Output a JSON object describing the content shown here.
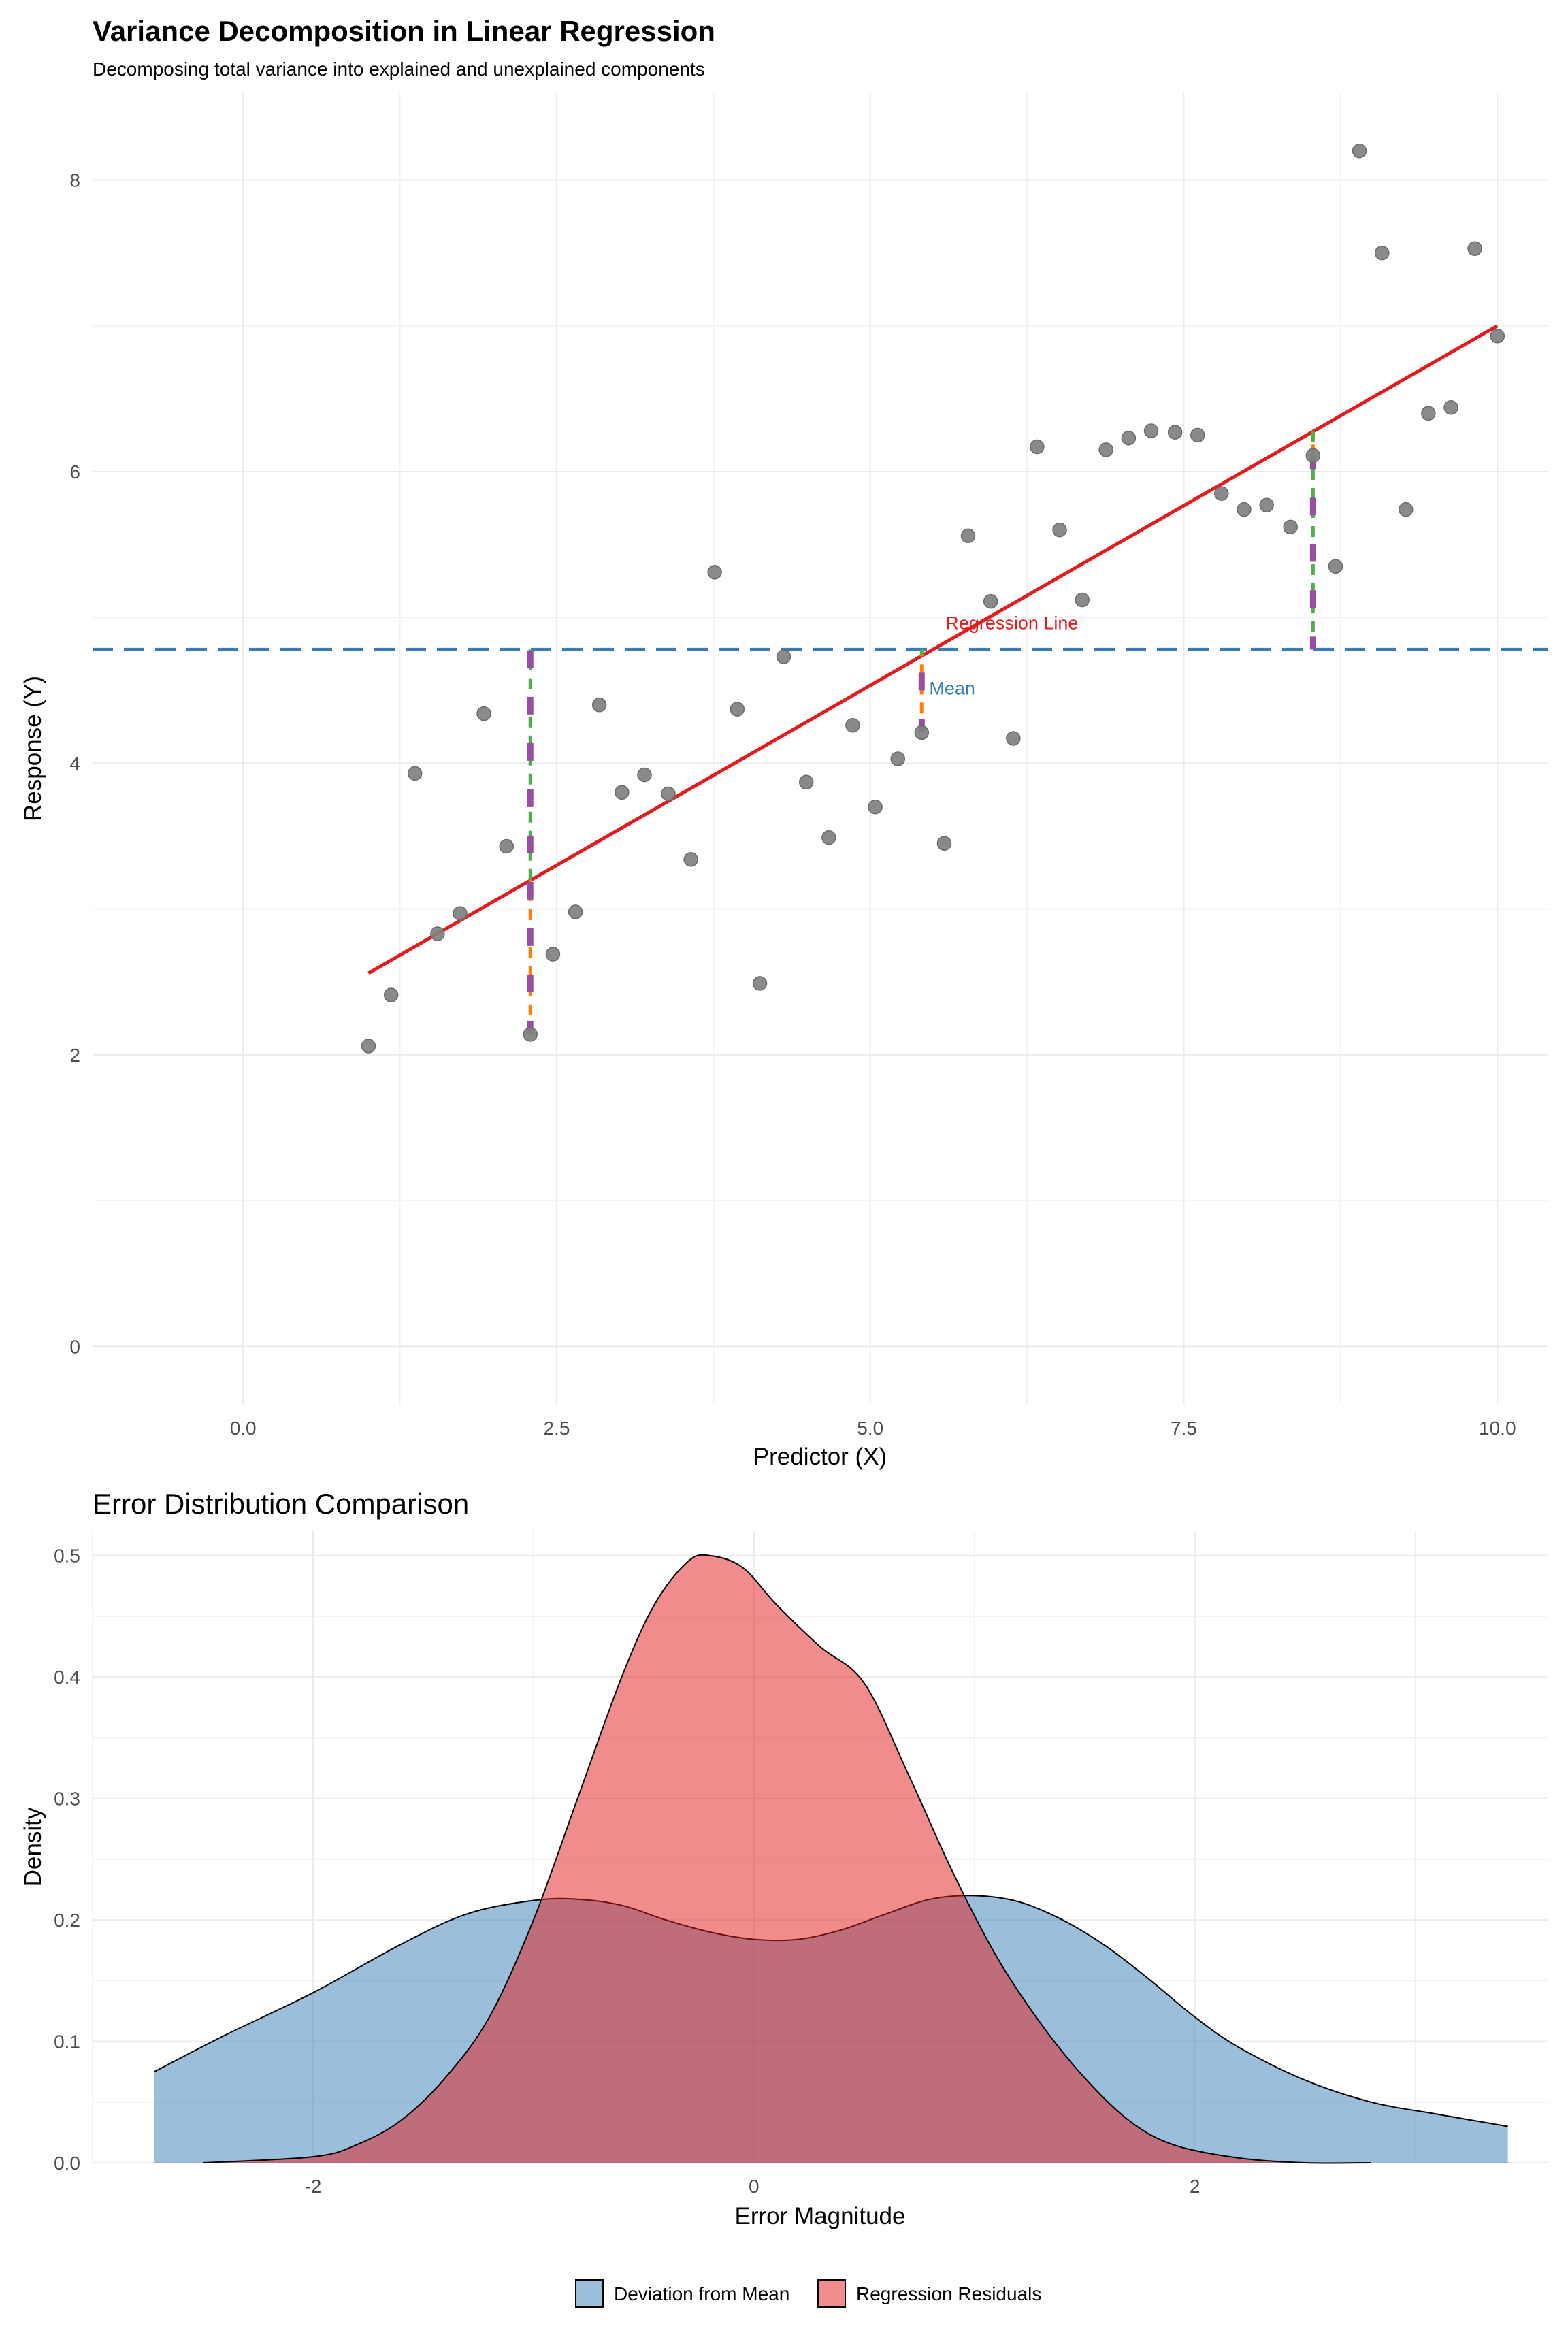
{
  "chart_data": [
    {
      "type": "scatter",
      "title": "Variance Decomposition in Linear Regression",
      "subtitle": "Decomposing total variance into explained and unexplained components",
      "xlabel": "Predictor (X)",
      "ylabel": "Response (Y)",
      "xlim": [
        -1.2,
        10.4
      ],
      "ylim": [
        -0.4,
        8.6
      ],
      "x_ticks": [
        0.0,
        2.5,
        5.0,
        7.5,
        10.0
      ],
      "x_tick_labels": [
        "0.0",
        "2.5",
        "5.0",
        "7.5",
        "10.0"
      ],
      "y_ticks": [
        0,
        2,
        4,
        6,
        8
      ],
      "y_tick_labels": [
        "0",
        "2",
        "4",
        "6",
        "8"
      ],
      "grid": true,
      "points": {
        "x": [
          1.0,
          1.18,
          1.37,
          1.55,
          1.73,
          1.92,
          2.1,
          2.29,
          2.47,
          2.65,
          2.84,
          3.02,
          3.2,
          3.39,
          3.57,
          3.76,
          3.94,
          4.12,
          4.31,
          4.49,
          4.67,
          4.86,
          5.04,
          5.22,
          5.41,
          5.59,
          5.78,
          5.96,
          6.14,
          6.33,
          6.51,
          6.69,
          6.88,
          7.06,
          7.24,
          7.43,
          7.61,
          7.8,
          7.98,
          8.16,
          8.35,
          8.53,
          8.71,
          8.9,
          9.08,
          9.27,
          9.45,
          9.63,
          9.82,
          10.0
        ],
        "y": [
          2.06,
          2.41,
          3.93,
          2.83,
          2.97,
          4.34,
          3.43,
          2.14,
          2.69,
          2.98,
          4.4,
          3.8,
          3.92,
          3.79,
          3.34,
          5.31,
          4.37,
          2.49,
          4.73,
          3.87,
          3.49,
          4.26,
          3.7,
          4.03,
          4.21,
          3.45,
          5.56,
          5.11,
          4.17,
          6.17,
          5.6,
          5.12,
          6.15,
          6.23,
          6.28,
          6.27,
          6.25,
          5.85,
          5.74,
          5.77,
          5.62,
          6.11,
          5.35,
          8.2,
          7.5,
          5.74,
          6.4,
          6.44,
          7.53,
          6.93
        ]
      },
      "regression_line": {
        "x": [
          1.0,
          10.0
        ],
        "y": [
          2.56,
          7.0
        ],
        "color": "#e41a1c",
        "label": "Regression Line"
      },
      "mean_line": {
        "y": 4.78,
        "color": "#377eb8",
        "label": "Mean"
      },
      "decomposition_segments": [
        {
          "x": 2.29,
          "y_obs": 2.14,
          "y_fit": 3.2,
          "y_mean": 4.78
        },
        {
          "x": 5.41,
          "y_obs": 4.21,
          "y_fit": 4.74,
          "y_mean": 4.78
        },
        {
          "x": 8.53,
          "y_obs": 6.11,
          "y_fit": 6.28,
          "y_mean": 4.78
        }
      ],
      "segment_colors": {
        "residual": "#ff7f00",
        "explained": "#4daf4a",
        "total": "#984ea3"
      },
      "point_color": "#808080"
    },
    {
      "type": "area",
      "title": "Error Distribution Comparison",
      "xlabel": "Error Magnitude",
      "ylabel": "Density",
      "xlim": [
        -3.0,
        3.6
      ],
      "ylim": [
        0,
        0.52
      ],
      "x_ticks": [
        -2,
        0,
        2
      ],
      "x_tick_labels": [
        "-2",
        "0",
        "2"
      ],
      "y_ticks": [
        0.0,
        0.1,
        0.2,
        0.3,
        0.4,
        0.5
      ],
      "y_tick_labels": [
        "0.0",
        "0.1",
        "0.2",
        "0.3",
        "0.4",
        "0.5"
      ],
      "grid": true,
      "legend": "bottom",
      "series": [
        {
          "name": "Deviation from Mean",
          "color": "#377eb8",
          "x": [
            -2.72,
            -2.4,
            -2.0,
            -1.6,
            -1.3,
            -1.0,
            -0.8,
            -0.6,
            -0.4,
            -0.2,
            0.0,
            0.2,
            0.4,
            0.6,
            0.8,
            1.0,
            1.2,
            1.4,
            1.6,
            1.8,
            2.0,
            2.2,
            2.5,
            2.8,
            3.1,
            3.42
          ],
          "y": [
            0.075,
            0.105,
            0.14,
            0.18,
            0.205,
            0.216,
            0.217,
            0.212,
            0.2,
            0.19,
            0.184,
            0.184,
            0.192,
            0.205,
            0.217,
            0.22,
            0.215,
            0.2,
            0.178,
            0.15,
            0.12,
            0.095,
            0.068,
            0.05,
            0.04,
            0.03
          ]
        },
        {
          "name": "Regression Residuals",
          "color": "#e41a1c",
          "x": [
            -2.5,
            -2.0,
            -1.8,
            -1.6,
            -1.4,
            -1.2,
            -1.0,
            -0.8,
            -0.6,
            -0.45,
            -0.3,
            -0.2,
            -0.05,
            0.1,
            0.3,
            0.5,
            0.7,
            0.9,
            1.1,
            1.3,
            1.5,
            1.7,
            1.9,
            2.2,
            2.5,
            2.8
          ],
          "y": [
            0.0,
            0.005,
            0.015,
            0.035,
            0.07,
            0.12,
            0.2,
            0.3,
            0.4,
            0.46,
            0.495,
            0.5,
            0.49,
            0.46,
            0.425,
            0.395,
            0.32,
            0.24,
            0.17,
            0.115,
            0.07,
            0.035,
            0.015,
            0.004,
            0.0,
            0.0
          ]
        }
      ]
    }
  ]
}
